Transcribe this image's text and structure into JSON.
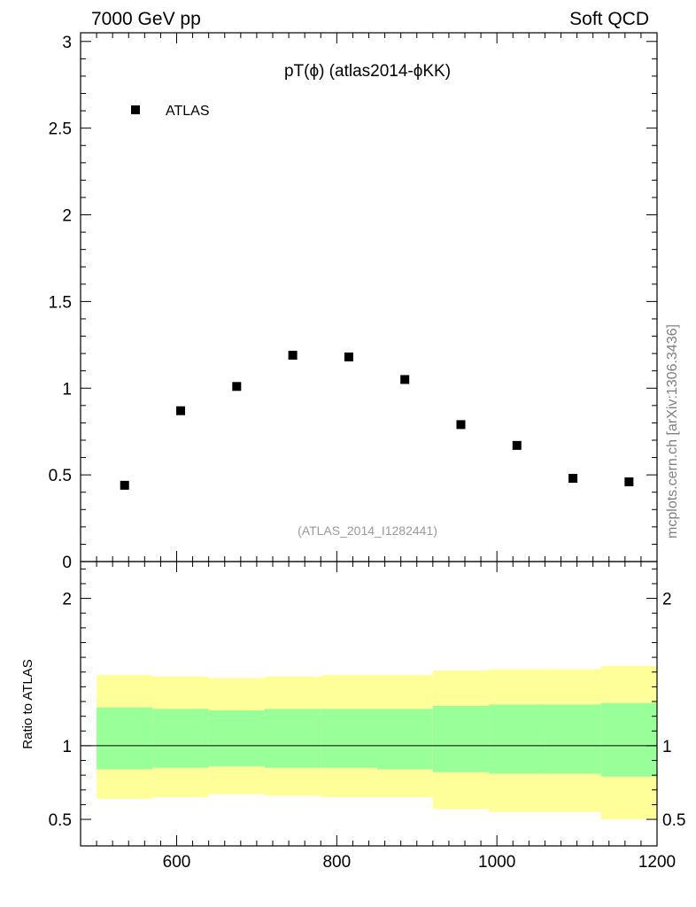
{
  "header": {
    "left_label": "7000 GeV pp",
    "right_label": "Soft QCD"
  },
  "side_label": "mcplots.cern.ch [arXiv:1306.3436]",
  "chart_data": [
    {
      "panel": "main",
      "type": "scatter",
      "title": "pT(ϕ) (atlas2014-ϕKK)",
      "analysis_label": "(ATLAS_2014_I1282441)",
      "xlabel": "",
      "ylabel": "",
      "xlim": [
        480,
        1200
      ],
      "ylim": [
        0,
        3.05
      ],
      "ytick_labels": [
        "0",
        "0.5",
        "1",
        "1.5",
        "2",
        "2.5",
        "3"
      ],
      "legend": {
        "placement": "top-left",
        "entries": [
          "ATLAS"
        ]
      },
      "series": [
        {
          "name": "ATLAS",
          "x": [
            535,
            605,
            675,
            745,
            815,
            885,
            955,
            1025,
            1095,
            1165
          ],
          "values": [
            0.44,
            0.87,
            1.01,
            1.19,
            1.18,
            1.05,
            0.79,
            0.67,
            0.48,
            0.46
          ]
        }
      ]
    },
    {
      "panel": "ratio",
      "type": "area",
      "ylabel": "Ratio to ATLAS",
      "xlim": [
        480,
        1200
      ],
      "ylim": [
        0.32,
        2.25
      ],
      "xtick_labels": [
        "600",
        "800",
        "1000",
        "1200"
      ],
      "ytick_labels": [
        "0.5",
        "1",
        "2"
      ],
      "reference_line": 1,
      "bins": [
        {
          "x": [
            500,
            570
          ],
          "inner": [
            0.84,
            1.26
          ],
          "outer": [
            0.64,
            1.48
          ]
        },
        {
          "x": [
            570,
            640
          ],
          "inner": [
            0.85,
            1.25
          ],
          "outer": [
            0.65,
            1.47
          ]
        },
        {
          "x": [
            640,
            710
          ],
          "inner": [
            0.86,
            1.24
          ],
          "outer": [
            0.67,
            1.46
          ]
        },
        {
          "x": [
            710,
            780
          ],
          "inner": [
            0.85,
            1.25
          ],
          "outer": [
            0.66,
            1.47
          ]
        },
        {
          "x": [
            780,
            850
          ],
          "inner": [
            0.85,
            1.25
          ],
          "outer": [
            0.65,
            1.48
          ]
        },
        {
          "x": [
            850,
            920
          ],
          "inner": [
            0.84,
            1.25
          ],
          "outer": [
            0.65,
            1.48
          ]
        },
        {
          "x": [
            920,
            990
          ],
          "inner": [
            0.82,
            1.27
          ],
          "outer": [
            0.57,
            1.51
          ]
        },
        {
          "x": [
            990,
            1060
          ],
          "inner": [
            0.81,
            1.28
          ],
          "outer": [
            0.55,
            1.52
          ]
        },
        {
          "x": [
            1060,
            1130
          ],
          "inner": [
            0.81,
            1.28
          ],
          "outer": [
            0.55,
            1.52
          ]
        },
        {
          "x": [
            1130,
            1200
          ],
          "inner": [
            0.79,
            1.29
          ],
          "outer": [
            0.5,
            1.54
          ]
        }
      ],
      "band_colors": {
        "inner": "#99ff99",
        "outer": "#ffff99"
      }
    }
  ]
}
